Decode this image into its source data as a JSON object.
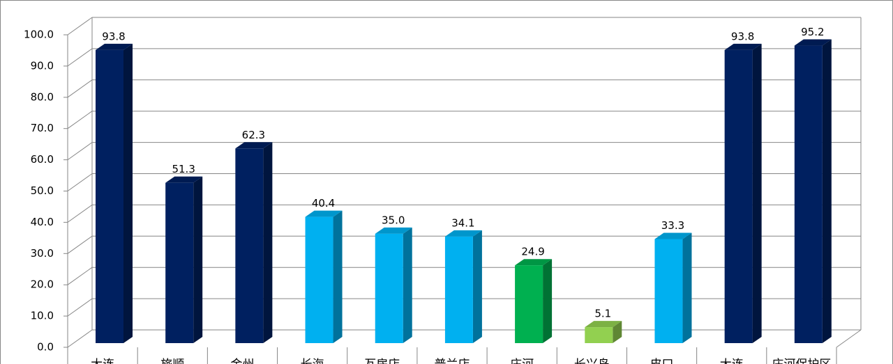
{
  "chart_data": {
    "type": "bar3d",
    "categories": [
      "大连",
      "旅顺",
      "金州",
      "长海",
      "瓦房店",
      "普兰店",
      "庄河",
      "长兴岛",
      "皮口",
      "大连",
      "庄河保护区"
    ],
    "values": [
      93.8,
      51.3,
      62.3,
      40.4,
      35.0,
      34.1,
      24.9,
      5.1,
      33.3,
      93.8,
      95.2
    ],
    "value_labels": [
      "93.8",
      "51.3",
      "62.3",
      "40.4",
      "35.0",
      "34.1",
      "24.9",
      "5.1",
      "33.3",
      "93.8",
      "95.2"
    ],
    "colors": [
      "#002060",
      "#002060",
      "#002060",
      "#00b0f0",
      "#00b0f0",
      "#00b0f0",
      "#00b050",
      "#92d050",
      "#00b0f0",
      "#002060",
      "#002060"
    ],
    "ylim": [
      0,
      100
    ],
    "yticks": [
      {
        "value": 0,
        "label": "0.0"
      },
      {
        "value": 10,
        "label": "10.0"
      },
      {
        "value": 20,
        "label": "20.0"
      },
      {
        "value": 30,
        "label": "30.0"
      },
      {
        "value": 40,
        "label": "40.0"
      },
      {
        "value": 50,
        "label": "50.0"
      },
      {
        "value": 60,
        "label": "60.0"
      },
      {
        "value": 70,
        "label": "70.0"
      },
      {
        "value": 80,
        "label": "80.0"
      },
      {
        "value": 90,
        "label": "90.0"
      },
      {
        "value": 100,
        "label": "100.0"
      }
    ],
    "grid": true
  }
}
